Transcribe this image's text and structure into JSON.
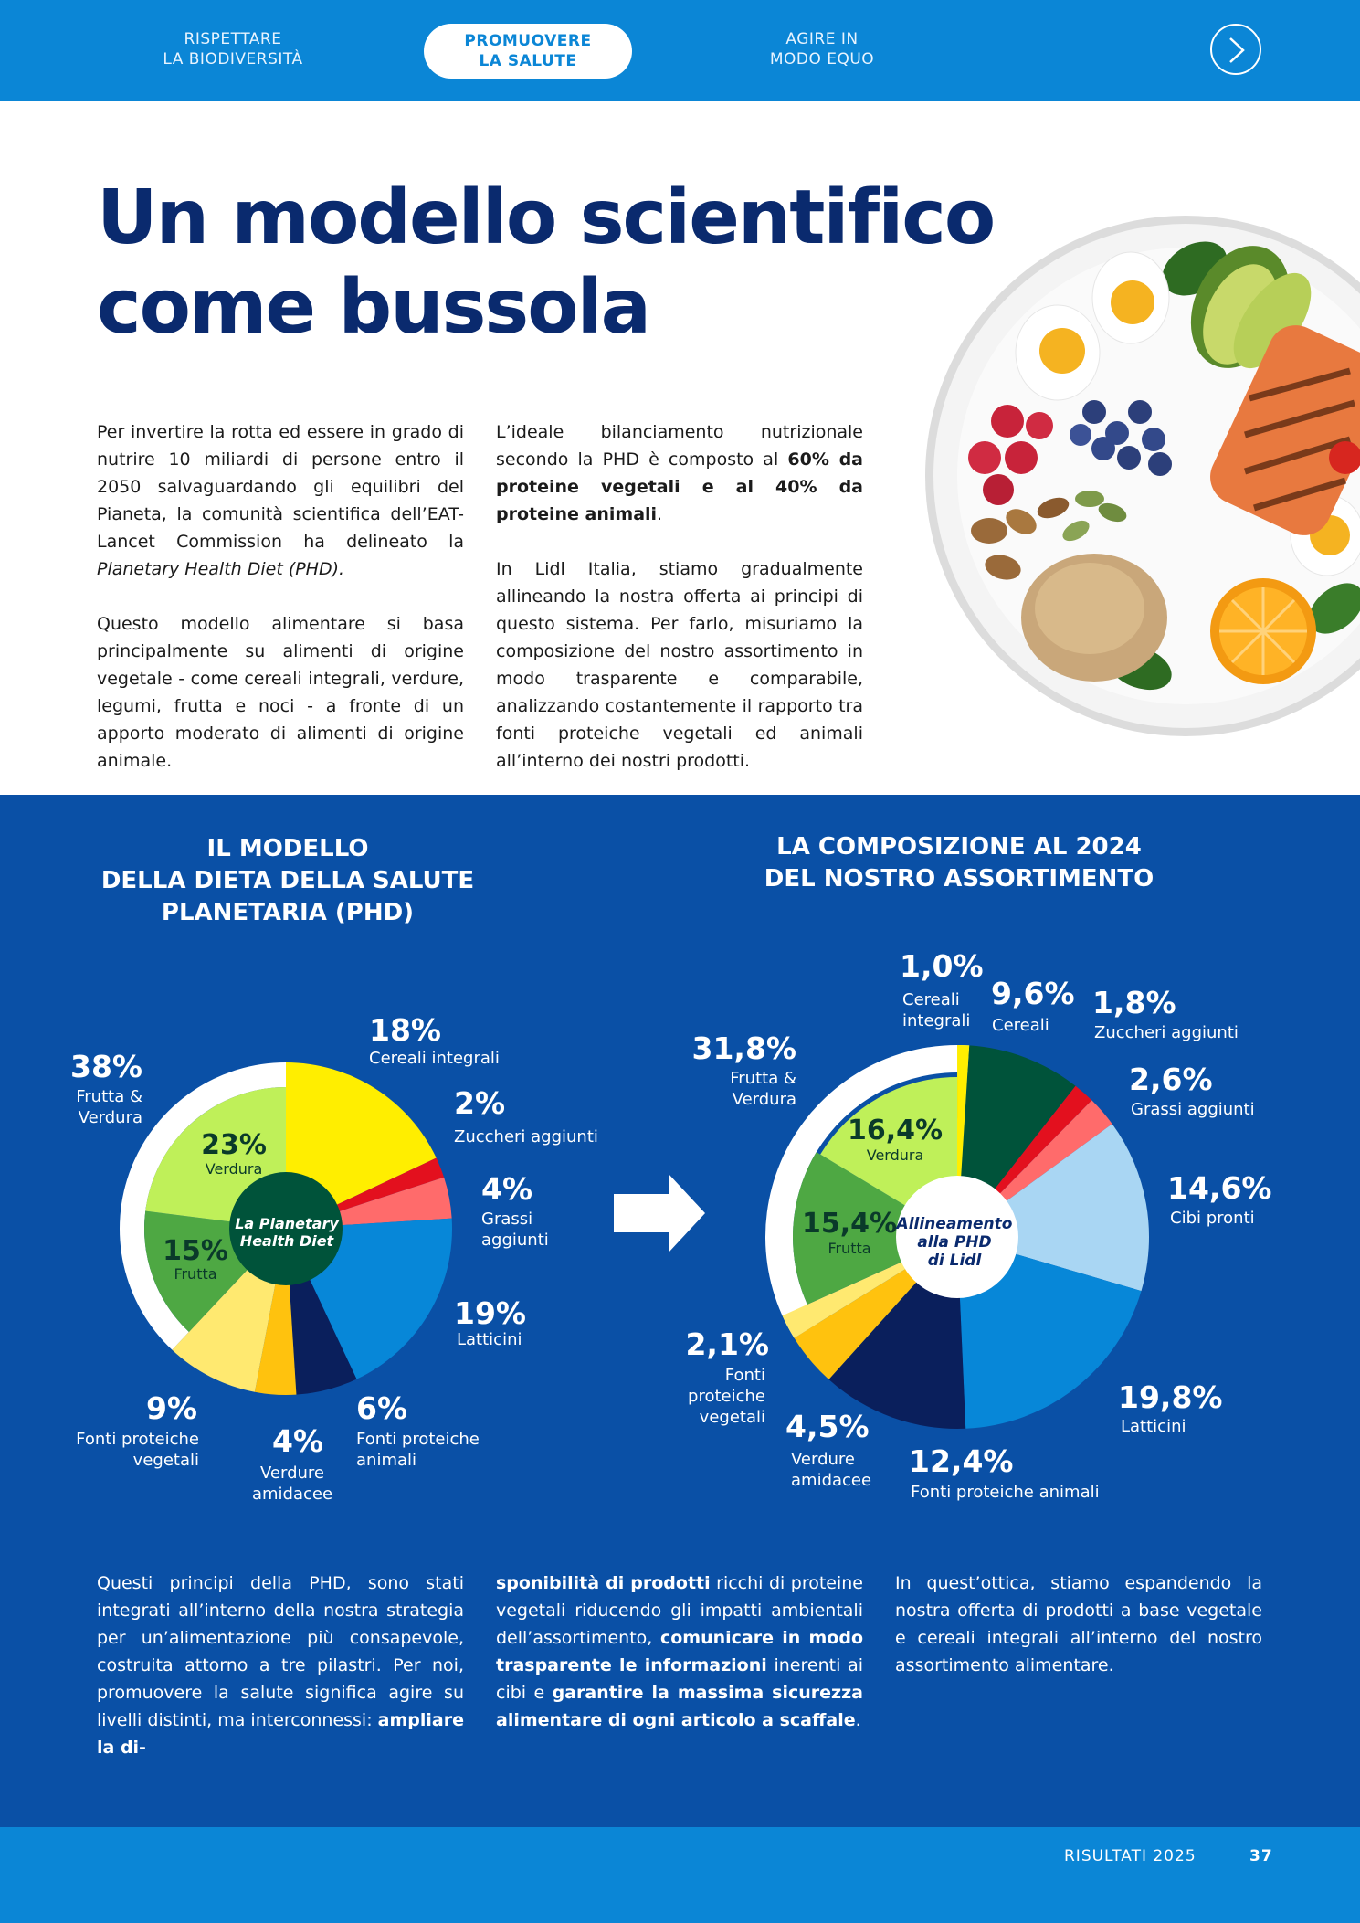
{
  "nav": {
    "tabs": [
      {
        "line1": "RISPETTARE",
        "line2": "LA BIODIVERSITÀ"
      },
      {
        "line1": "PROMUOVERE",
        "line2": "LA SALUTE"
      },
      {
        "line1": "AGIRE IN",
        "line2": "MODO EQUO"
      }
    ],
    "active_tab": 1,
    "next_icon": "chevron-right-icon"
  },
  "header": {
    "title_line1": "Un modello scientifico",
    "title_line2": "come bussola"
  },
  "intro": {
    "col1_p1_a": "Per invertire la rotta ed essere in grado di nutrire 10 miliardi di persone entro il 2050 salvaguardando gli equilibri del Pianeta, la comunità scientifica dell’EAT-Lancet Commission ha delineato la ",
    "col1_p1_em": "Planetary Health Diet (PHD).",
    "col1_p2": "Questo modello alimentare si basa principalmente su alimenti di origine vegetale - come cereali integrali, verdure, legumi, frutta e noci - a fronte di un apporto moderato di alimenti di origine animale.",
    "col2_p1_a": "L’ideale bilanciamento nutrizionale secondo la PHD è composto al ",
    "col2_p1_b": "60% da proteine vegetali e al 40% da proteine animali",
    "col2_p1_c": ".",
    "col2_p2": "In Lidl Italia, stiamo gradualmente allineando la nostra offerta ai principi di questo sistema. Per farlo, misuriamo la composizione del nostro assortimento in modo trasparente e comparabile, analizzando costantemente il rapporto tra fonti proteiche vegetali ed animali all’interno dei nostri prodotti."
  },
  "chart_data": [
    {
      "type": "pie",
      "title": "IL MODELLO DELLA DIETA DELLA SALUTE PLANETARIA (PHD)",
      "title_lines": [
        "IL MODELLO",
        "DELLA DIETA DELLA SALUTE",
        "PLANETARIA (PHD)"
      ],
      "center_label": [
        "La Planetary",
        "Health Diet"
      ],
      "slices": [
        {
          "key": "cereali",
          "label": "Cereali integrali",
          "value": 18,
          "display": "18%",
          "color": "#ffee00"
        },
        {
          "key": "zuccheri",
          "label": "Zuccheri aggiunti",
          "value": 2,
          "display": "2%",
          "color": "#e3101e"
        },
        {
          "key": "grassi",
          "label": "Grassi aggiunti",
          "value": 4,
          "display": "4%",
          "color": "#ff6b6b"
        },
        {
          "key": "latticini",
          "label": "Latticini",
          "value": 19,
          "display": "19%",
          "color": "#0787d8"
        },
        {
          "key": "animali",
          "label": "Fonti proteiche animali",
          "value": 6,
          "display": "6%",
          "color": "#0a1f5c"
        },
        {
          "key": "amidacee",
          "label": "Verdure amidacee",
          "value": 4,
          "display": "4%",
          "color": "#ffc20e"
        },
        {
          "key": "vegetali",
          "label": "Fonti proteiche vegetali",
          "value": 9,
          "display": "9%",
          "color": "#ffe970"
        },
        {
          "key": "frutta",
          "label": "Frutta",
          "value": 15,
          "display": "15%",
          "color": "#4ea843"
        },
        {
          "key": "verdura",
          "label": "Verdura",
          "value": 23,
          "display": "23%",
          "color": "#bff059"
        }
      ],
      "group": {
        "label": "Frutta & Verdura",
        "value": 38,
        "display": "38%",
        "color": "#ffffff"
      }
    },
    {
      "type": "pie",
      "title": "LA COMPOSIZIONE AL 2024 DEL NOSTRO ASSORTIMENTO",
      "title_lines": [
        "LA COMPOSIZIONE AL 2024",
        "DEL NOSTRO ASSORTIMENTO"
      ],
      "center_label": [
        "Allineamento",
        "alla PHD",
        "di Lidl"
      ],
      "slices": [
        {
          "key": "cereali",
          "label": "Cereali",
          "value": 9.6,
          "display": "9,6%",
          "color": "#00533a"
        },
        {
          "key": "zuccheri",
          "label": "Zuccheri aggiunti",
          "value": 1.8,
          "display": "1,8%",
          "color": "#e3101e"
        },
        {
          "key": "grassi",
          "label": "Grassi aggiunti",
          "value": 2.6,
          "display": "2,6%",
          "color": "#ff6b6b"
        },
        {
          "key": "pronti",
          "label": "Cibi pronti",
          "value": 14.6,
          "display": "14,6%",
          "color": "#a9d6f3"
        },
        {
          "key": "latticini",
          "label": "Latticini",
          "value": 19.8,
          "display": "19,8%",
          "color": "#0787d8"
        },
        {
          "key": "animali",
          "label": "Fonti proteiche animali",
          "value": 12.4,
          "display": "12,4%",
          "color": "#0a1f5c"
        },
        {
          "key": "amidacee",
          "label": "Verdure amidacee",
          "value": 4.5,
          "display": "4,5%",
          "color": "#ffc20e"
        },
        {
          "key": "vegetali",
          "label": "Fonti proteiche vegetali",
          "value": 2.1,
          "display": "2,1%",
          "color": "#ffe970"
        },
        {
          "key": "frutta",
          "label": "Frutta",
          "value": 15.4,
          "display": "15,4%",
          "color": "#4ea843"
        },
        {
          "key": "verdura",
          "label": "Verdura",
          "value": 16.4,
          "display": "16,4%",
          "color": "#bff059"
        },
        {
          "key": "integrali",
          "label": "Cereali integrali",
          "value": 1.0,
          "display": "1,0%",
          "color": "#ffee00"
        }
      ],
      "group": {
        "label": "Frutta & Verdura",
        "value": 31.8,
        "display": "31,8%",
        "color": "#ffffff"
      }
    }
  ],
  "bottom": {
    "col1_a": "Questi principi della PHD, sono stati integrati all’interno della nostra strategia per un’alimentazione più consapevole, costruita attorno a tre pilastri. Per noi, promuovere la salute significa agire su livelli distinti, ma interconnessi: ",
    "col1_b": "ampliare la di-",
    "col2_a": "sponibilità di prodotti",
    "col2_b": " ricchi di proteine vegetali riducendo gli impatti ambientali dell’assortimento, ",
    "col2_c": "comunicare in modo trasparente le informazioni",
    "col2_d": " inerenti ai cibi e ",
    "col2_e": "garantire la massima sicurezza alimentare di ogni articolo a scaffale",
    "col2_f": ".",
    "col3": "In quest’ottica, stiamo espandendo la nostra offerta di prodotti a base vegetale e cereali integrali all’interno del nostro assortimento alimentare."
  },
  "footer": {
    "section": "RISULTATI 2025",
    "page": "37"
  },
  "colors": {
    "nav_blue": "#0b86d6",
    "dark_blue": "#0a50a6",
    "title_navy": "#0a2a6e"
  },
  "image": "food-plate-image"
}
